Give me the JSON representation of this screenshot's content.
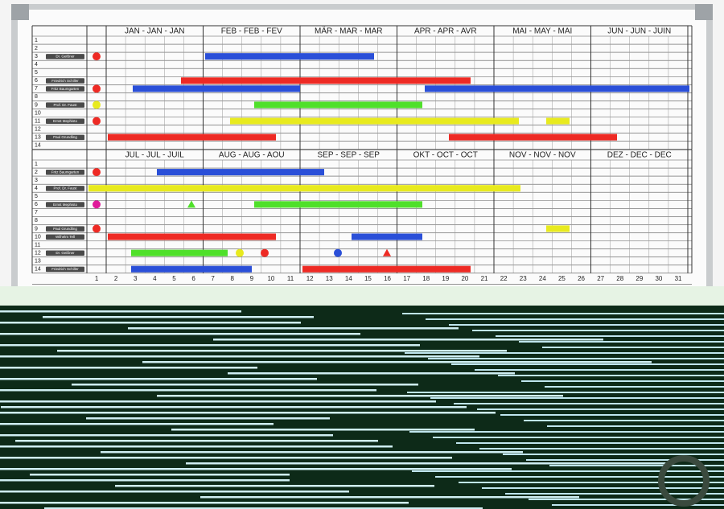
{
  "sections": [
    {
      "months": [
        "JAN - JAN - JAN",
        "FEB - FEB - FEV",
        "MÄR - MAR - MAR",
        "APR - APR - AVR",
        "MAI - MAY - MAI",
        "JUN - JUN - JUIN"
      ],
      "rows": [
        {
          "number": 1
        },
        {
          "number": 2
        },
        {
          "number": 3,
          "name": "Dr. Geißner"
        },
        {
          "number": 4
        },
        {
          "number": 5
        },
        {
          "number": 6,
          "name": "Friedrich Schiller"
        },
        {
          "number": 7,
          "name": "Fritz Baumgarten"
        },
        {
          "number": 8
        },
        {
          "number": 9,
          "name": "Prof. Dr. Faust"
        },
        {
          "number": 10
        },
        {
          "number": 11,
          "name": "Ernst Mephisto"
        },
        {
          "number": 12
        },
        {
          "number": 13,
          "name": "Paul Grundling"
        },
        {
          "number": 14
        }
      ]
    },
    {
      "months": [
        "JUL - JUL - JUIL",
        "AUG - AUG - AOU",
        "SEP - SEP - SEP",
        "OKT - OCT - OCT",
        "NOV - NOV - NOV",
        "DEZ - DEC - DEC"
      ],
      "rows": [
        {
          "number": 1
        },
        {
          "number": 2,
          "name": "Fritz Baumgarten"
        },
        {
          "number": 3
        },
        {
          "number": 4,
          "name": "Prof. Dr. Faust"
        },
        {
          "number": 5
        },
        {
          "number": 6,
          "name": "Ernst Mephisto"
        },
        {
          "number": 7
        },
        {
          "number": 8
        },
        {
          "number": 9,
          "name": "Paul Grundling"
        },
        {
          "number": 10,
          "name": "Wilhelm Tell"
        },
        {
          "number": 11
        },
        {
          "number": 12,
          "name": "Dr. Geißner"
        },
        {
          "number": 13
        },
        {
          "number": 14,
          "name": "Friedrich Schiller"
        }
      ]
    }
  ],
  "days": [
    1,
    2,
    3,
    4,
    5,
    6,
    7,
    8,
    9,
    10,
    11,
    12,
    13,
    14,
    15,
    16,
    17,
    18,
    19,
    20,
    21,
    22,
    23,
    24,
    25,
    26,
    27,
    28,
    29,
    30,
    31
  ]
}
